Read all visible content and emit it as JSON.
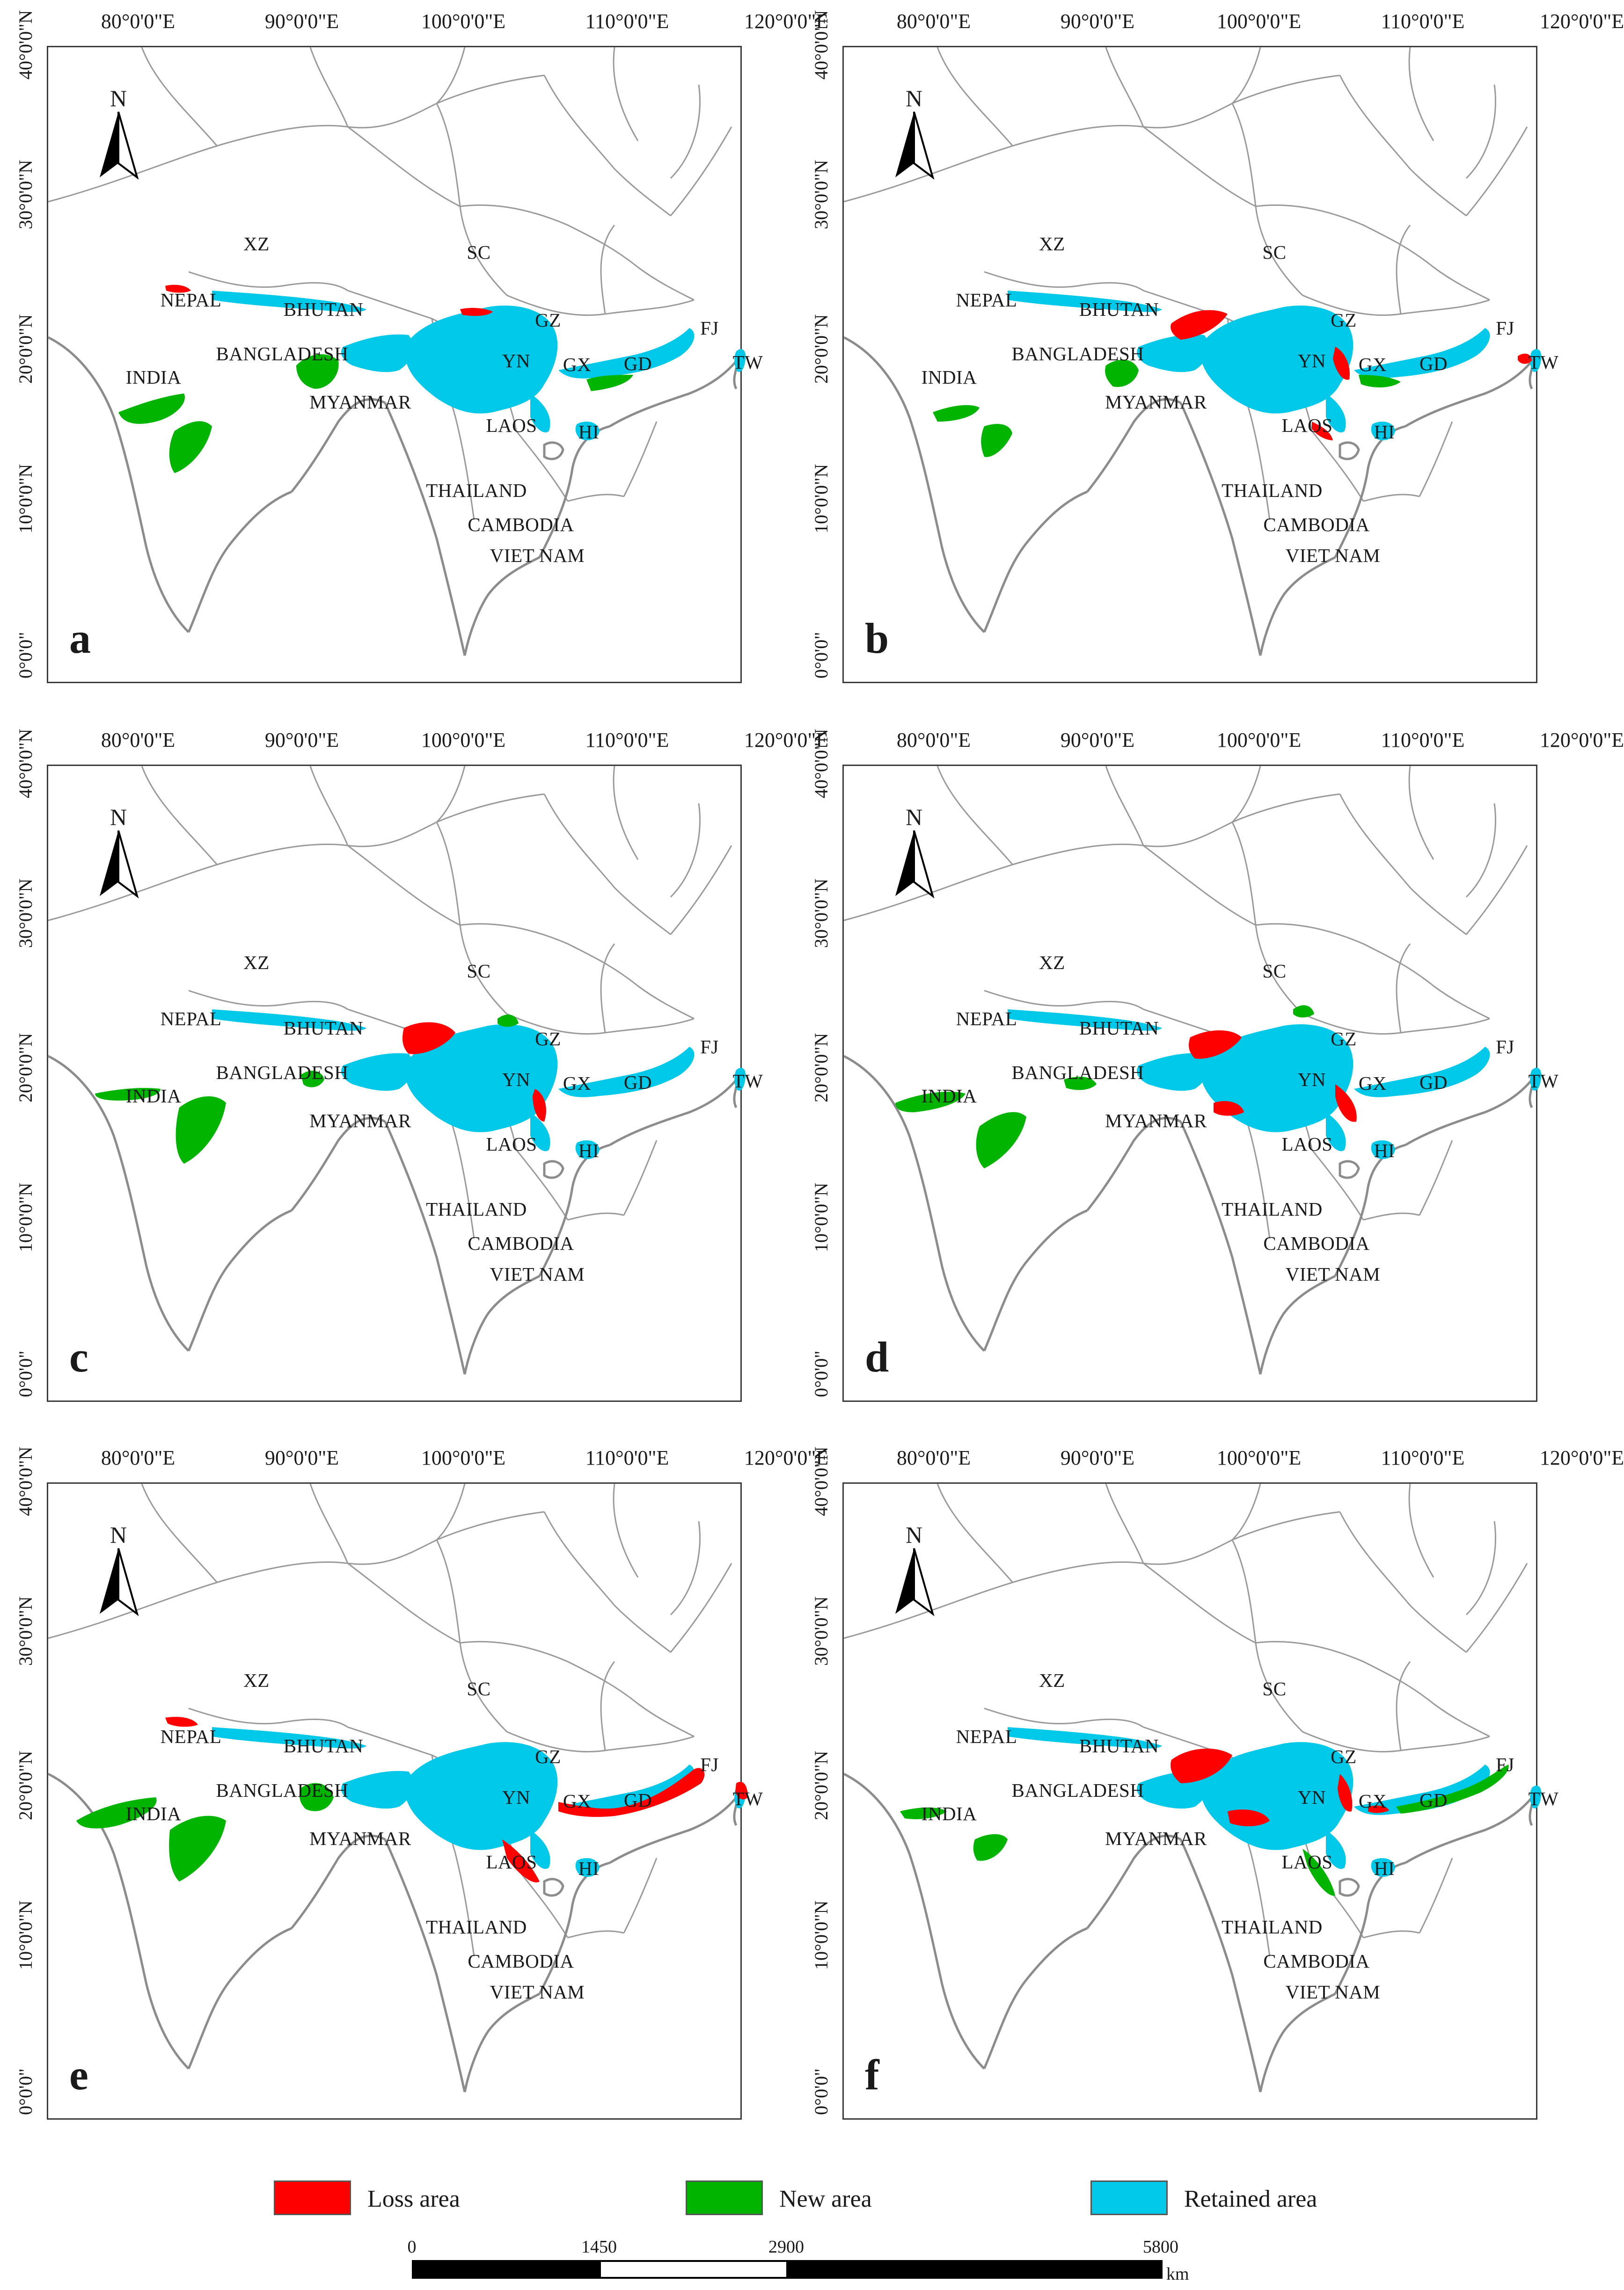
{
  "longitude_labels": [
    "80°0'0\"E",
    "90°0'0\"E",
    "100°0'0\"E",
    "110°0'0\"E",
    "120°0'0\"E"
  ],
  "latitude_labels": [
    "0°0'0\"",
    "10°0'0\"N",
    "20°0'0\"N",
    "30°0'0\"N",
    "40°0'0\"N"
  ],
  "north_arrow": {
    "label": "N",
    "icon": "north-arrow-icon"
  },
  "place_names": {
    "xz": "XZ",
    "sc": "SC",
    "nepal": "NEPAL",
    "bhutan": "BHUTAN",
    "gz": "GZ",
    "fj": "FJ",
    "india": "INDIA",
    "bangladesh": "BANGLADESH",
    "yn": "YN",
    "gx": "GX",
    "gd": "GD",
    "tw": "TW",
    "myanmar": "MYANMAR",
    "laos": "LAOS",
    "hi": "HI",
    "thailand": "THAILAND",
    "cambodia": "CAMBODIA",
    "vietnam": "VIET NAM"
  },
  "panels": [
    {
      "letter": "a"
    },
    {
      "letter": "b"
    },
    {
      "letter": "c"
    },
    {
      "letter": "d"
    },
    {
      "letter": "e"
    },
    {
      "letter": "f"
    }
  ],
  "legend": [
    {
      "label": "Loss area",
      "color": "#ff0000"
    },
    {
      "label": "New area",
      "color": "#00b400"
    },
    {
      "label": "Retained area",
      "color": "#00c8e8"
    }
  ],
  "scale_bar": {
    "ticks": [
      "0",
      "1450",
      "2900",
      "5800"
    ],
    "unit": "km"
  },
  "colors": {
    "border": "#9a9a9a",
    "coast": "#8c8c8c",
    "loss": "#ff0000",
    "new": "#00b400",
    "retained": "#00c8e8"
  }
}
